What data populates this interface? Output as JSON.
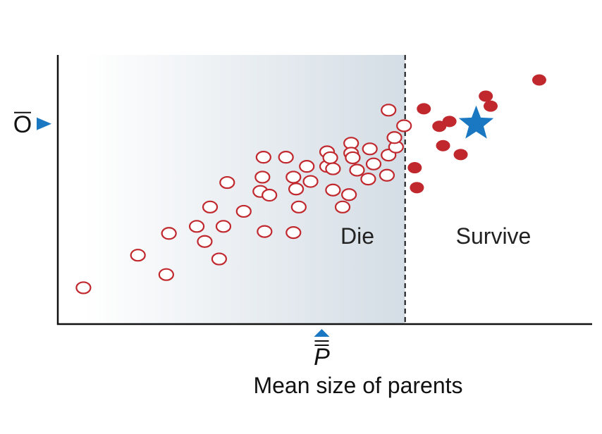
{
  "chart_data": {
    "type": "scatter",
    "title": "",
    "xlabel": "Mean size of parents",
    "ylabel": "",
    "xlim": [
      0,
      100
    ],
    "ylim": [
      0,
      100
    ],
    "grid": false,
    "threshold_x": 65,
    "regions": {
      "left": "Die",
      "right": "Survive"
    },
    "markers": {
      "x_mean": "P",
      "y_mean": "O",
      "x_mean_value": 49.4,
      "y_mean_value": 74.4,
      "pointer_color": "#1a78c2"
    },
    "series": [
      {
        "style": "open-circle",
        "color": "#c0282d",
        "points": [
          [
            4.8,
            13.5
          ],
          [
            15,
            25.6
          ],
          [
            20.3,
            18.4
          ],
          [
            20.8,
            33.7
          ],
          [
            26,
            36.3
          ],
          [
            27.5,
            30.7
          ],
          [
            30.2,
            24.2
          ],
          [
            31,
            36.3
          ],
          [
            28.5,
            43.5
          ],
          [
            31.7,
            52.6
          ],
          [
            34.8,
            41.9
          ],
          [
            37.9,
            49.3
          ],
          [
            38.5,
            62
          ],
          [
            38.3,
            54.6
          ],
          [
            38.7,
            34.4
          ],
          [
            39.6,
            47.9
          ],
          [
            42.7,
            62
          ],
          [
            44.1,
            54.6
          ],
          [
            44.6,
            50.2
          ],
          [
            44.1,
            34
          ],
          [
            45.1,
            43.5
          ],
          [
            46.6,
            58.6
          ],
          [
            47.3,
            53
          ],
          [
            50.4,
            64
          ],
          [
            50.4,
            58.6
          ],
          [
            51,
            61.8
          ],
          [
            51.5,
            49.8
          ],
          [
            51.5,
            57.7
          ],
          [
            53.3,
            43.5
          ],
          [
            54.5,
            48.1
          ],
          [
            54.9,
            67.2
          ],
          [
            54.9,
            63.5
          ],
          [
            55.2,
            61.8
          ],
          [
            56,
            57.2
          ],
          [
            58.4,
            65.1
          ],
          [
            58.1,
            53.9
          ],
          [
            59.1,
            59.5
          ],
          [
            61.6,
            55.3
          ],
          [
            61.9,
            62.8
          ],
          [
            63.3,
            65.8
          ],
          [
            64.8,
            73.7
          ],
          [
            63,
            69.3
          ],
          [
            61.9,
            79.5
          ]
        ]
      },
      {
        "style": "filled-circle",
        "color": "#c0282d",
        "points": [
          [
            66.8,
            58.1
          ],
          [
            67.2,
            50.7
          ],
          [
            68.5,
            80
          ],
          [
            71.4,
            73.5
          ],
          [
            72.1,
            66.3
          ],
          [
            73.3,
            75.3
          ],
          [
            75.4,
            63
          ],
          [
            80.1,
            84.7
          ],
          [
            81,
            81
          ],
          [
            90.1,
            90.7
          ]
        ]
      },
      {
        "style": "star",
        "color": "#1a78c2",
        "points": [
          [
            78.3,
            74.4
          ]
        ]
      }
    ]
  }
}
